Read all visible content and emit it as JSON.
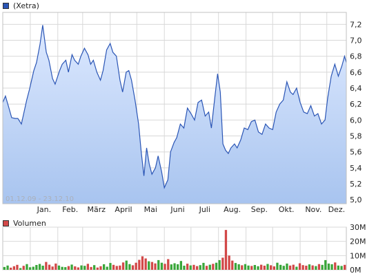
{
  "chart_data": [
    {
      "type": "area",
      "legend": "(Xetra)",
      "date_range_label": "01.12.09 - 23.12.10",
      "x_tick_labels": [
        "Jan.",
        "Feb.",
        "März",
        "April",
        "Mai",
        "Juni",
        "Juli",
        "Aug.",
        "Sep.",
        "Okt.",
        "Nov.",
        "Dez."
      ],
      "y_tick_labels": [
        "5,0",
        "5,2",
        "5,4",
        "5,6",
        "5,8",
        "6,0",
        "6,2",
        "6,4",
        "6,6",
        "6,8",
        "7,0",
        "7,2"
      ],
      "ylim": [
        4.95,
        7.35
      ],
      "grid": true,
      "series": [
        {
          "name": "(Xetra)",
          "x": [
            "2009-12-01",
            "2009-12-04",
            "2009-12-08",
            "2009-12-11",
            "2009-12-15",
            "2009-12-18",
            "2009-12-22",
            "2009-12-28",
            "2009-12-31",
            "2010-01-05",
            "2010-01-08",
            "2010-01-12",
            "2010-01-15",
            "2010-01-19",
            "2010-01-22",
            "2010-01-26",
            "2010-01-29",
            "2010-02-03",
            "2010-02-06",
            "2010-02-10",
            "2010-02-13",
            "2010-02-17",
            "2010-02-20",
            "2010-02-24",
            "2010-02-27",
            "2010-03-03",
            "2010-03-07",
            "2010-03-10",
            "2010-03-13",
            "2010-03-17",
            "2010-03-21",
            "2010-03-24",
            "2010-03-28",
            "2010-04-01",
            "2010-04-04",
            "2010-04-08",
            "2010-04-12",
            "2010-04-15",
            "2010-04-19",
            "2010-04-22",
            "2010-04-25",
            "2010-04-29",
            "2010-05-03",
            "2010-05-06",
            "2010-05-09",
            "2010-05-12",
            "2010-05-15",
            "2010-05-18",
            "2010-05-22",
            "2010-05-25",
            "2010-05-29",
            "2010-06-01",
            "2010-06-05",
            "2010-06-08",
            "2010-06-12",
            "2010-06-15",
            "2010-06-19",
            "2010-06-23",
            "2010-06-27",
            "2010-07-01",
            "2010-07-05",
            "2010-07-09",
            "2010-07-13",
            "2010-07-17",
            "2010-07-21",
            "2010-07-24",
            "2010-07-28",
            "2010-07-31",
            "2010-08-03",
            "2010-08-06",
            "2010-08-09",
            "2010-08-12",
            "2010-08-15",
            "2010-08-19",
            "2010-08-22",
            "2010-08-26",
            "2010-08-30",
            "2010-09-03",
            "2010-09-07",
            "2010-09-11",
            "2010-09-15",
            "2010-09-19",
            "2010-09-23",
            "2010-09-27",
            "2010-10-01",
            "2010-10-05",
            "2010-10-09",
            "2010-10-13",
            "2010-10-17",
            "2010-10-21",
            "2010-10-24",
            "2010-10-28",
            "2010-11-01",
            "2010-11-05",
            "2010-11-09",
            "2010-11-13",
            "2010-11-17",
            "2010-11-21",
            "2010-11-25",
            "2010-11-29",
            "2010-12-02",
            "2010-12-06",
            "2010-12-10",
            "2010-12-14",
            "2010-12-18",
            "2010-12-21",
            "2010-12-23"
          ],
          "values": [
            6.22,
            6.3,
            6.15,
            6.03,
            6.02,
            6.02,
            5.95,
            6.25,
            6.38,
            6.62,
            6.72,
            6.95,
            7.19,
            6.85,
            6.75,
            6.52,
            6.45,
            6.62,
            6.7,
            6.75,
            6.6,
            6.82,
            6.75,
            6.7,
            6.8,
            6.9,
            6.82,
            6.7,
            6.75,
            6.6,
            6.5,
            6.62,
            6.88,
            6.96,
            6.85,
            6.8,
            6.5,
            6.35,
            6.6,
            6.62,
            6.5,
            6.25,
            5.95,
            5.6,
            5.3,
            5.65,
            5.45,
            5.32,
            5.4,
            5.55,
            5.35,
            5.15,
            5.25,
            5.6,
            5.72,
            5.78,
            5.95,
            5.9,
            6.15,
            6.08,
            6.0,
            6.22,
            6.25,
            6.05,
            6.1,
            5.9,
            6.3,
            6.58,
            6.35,
            5.7,
            5.62,
            5.58,
            5.65,
            5.7,
            5.65,
            5.75,
            5.9,
            5.88,
            5.98,
            6.0,
            5.85,
            5.82,
            5.95,
            5.9,
            5.88,
            6.1,
            6.2,
            6.25,
            6.48,
            6.35,
            6.32,
            6.4,
            6.22,
            6.1,
            6.08,
            6.18,
            6.05,
            6.08,
            5.95,
            6.0,
            6.28,
            6.55,
            6.7,
            6.55,
            6.68,
            6.8,
            6.72
          ]
        }
      ]
    },
    {
      "type": "bar",
      "legend": "Volumen",
      "y_tick_labels": [
        "0M",
        "10M",
        "20M",
        "30M"
      ],
      "ylim": [
        0,
        30
      ],
      "series": [
        {
          "name": "Volumen",
          "values_millions": [
            2.0,
            3.0,
            1.5,
            2.5,
            3.5,
            1.2,
            2.8,
            4.0,
            1.8,
            2.2,
            3.4,
            4.1,
            2.9,
            5.5,
            3.6,
            2.3,
            4.4,
            3.0,
            2.1,
            1.9,
            2.6,
            3.7,
            2.4,
            1.7,
            3.1,
            2.8,
            4.2,
            2.0,
            3.3,
            1.6,
            2.5,
            3.9,
            2.2,
            4.8,
            3.5,
            2.7,
            3.0,
            5.2,
            6.5,
            4.0,
            3.2,
            5.0,
            7.0,
            9.5,
            8.0,
            6.0,
            5.5,
            4.5,
            6.8,
            5.0,
            4.2,
            7.5,
            3.8,
            4.6,
            3.9,
            6.2,
            2.9,
            4.3,
            3.1,
            3.5,
            2.6,
            3.3,
            4.9,
            2.8,
            3.6,
            4.2,
            5.0,
            6.8,
            8.5,
            28.0,
            10.0,
            6.5,
            4.8,
            3.9,
            3.2,
            4.0,
            3.0,
            2.7,
            3.4,
            2.5,
            3.6,
            2.9,
            4.1,
            3.2,
            2.4,
            5.0,
            3.5,
            2.8,
            4.4,
            3.0,
            3.6,
            2.2,
            4.6,
            3.3,
            2.9,
            3.8,
            3.1,
            2.6,
            4.0,
            3.5,
            6.8,
            4.4,
            3.9,
            5.2,
            3.0,
            2.7,
            3.5
          ],
          "colors": [
            "#3aa63a",
            "#d24848"
          ]
        }
      ]
    }
  ],
  "colors": {
    "price_line": "#2a55b5",
    "area_top": "#dde9ff",
    "area_bottom": "#a8c4ef",
    "grid": "#d8d8d8",
    "volume_up": "#3aa63a",
    "volume_down": "#d24848",
    "legend_price_swatch": "#2a55b5",
    "legend_volume_swatch": "#d24848"
  }
}
